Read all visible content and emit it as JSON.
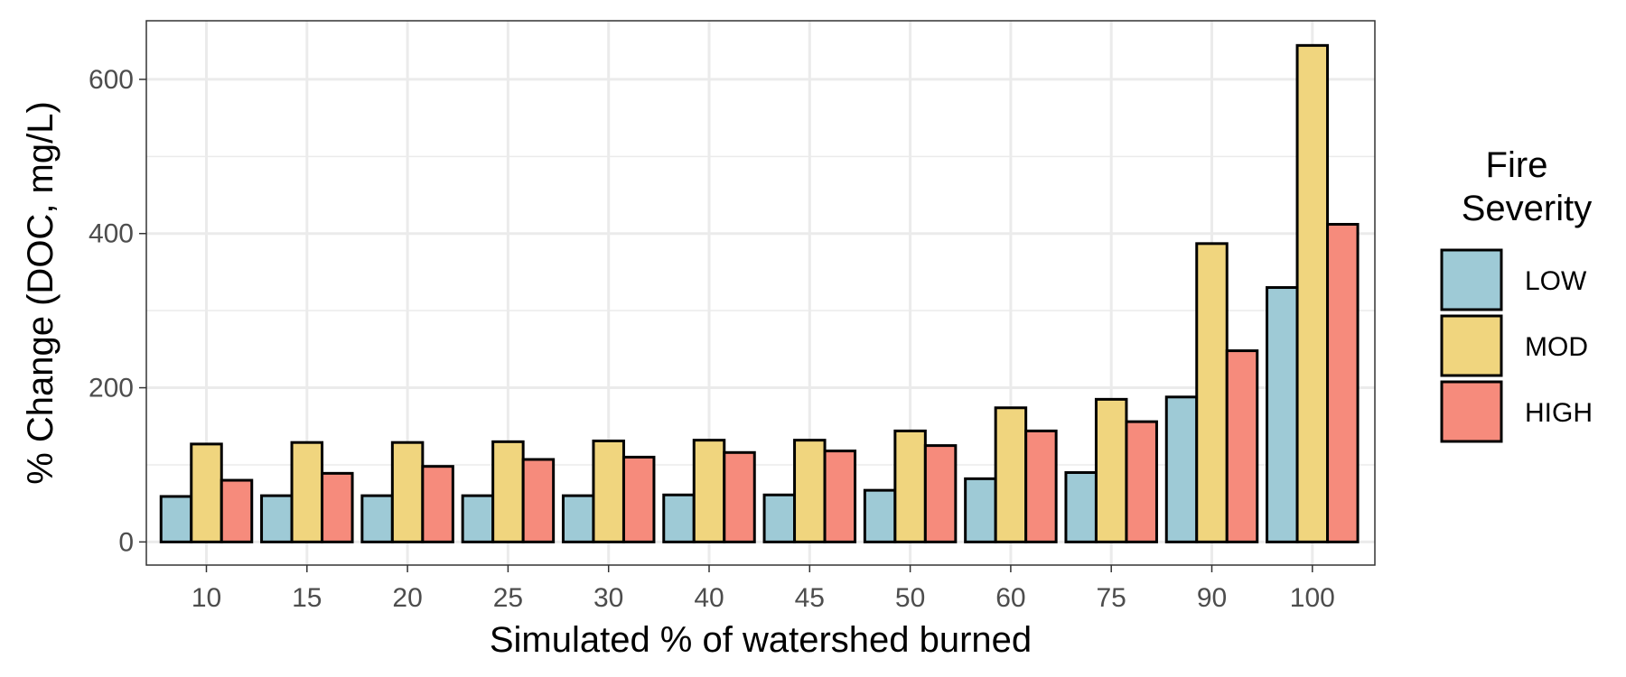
{
  "chart_data": {
    "type": "bar",
    "xlabel": "Simulated % of watershed burned",
    "ylabel": "% Change (DOC, mg/L)",
    "categories": [
      "10",
      "15",
      "20",
      "25",
      "30",
      "40",
      "45",
      "50",
      "60",
      "75",
      "90",
      "100"
    ],
    "series": [
      {
        "name": "LOW",
        "color": "#9ECAD6",
        "values": [
          59,
          60,
          60,
          60,
          60,
          61,
          61,
          67,
          82,
          90,
          188,
          330
        ]
      },
      {
        "name": "MOD",
        "color": "#F0D57E",
        "values": [
          127,
          129,
          129,
          130,
          131,
          132,
          132,
          144,
          174,
          185,
          387,
          644
        ]
      },
      {
        "name": "HIGH",
        "color": "#F68B7C",
        "values": [
          80,
          89,
          98,
          107,
          110,
          116,
          118,
          125,
          144,
          156,
          248,
          412
        ]
      }
    ],
    "ylim": [
      -30,
      676
    ],
    "yticks": [
      0,
      200,
      400,
      600
    ],
    "grid": true,
    "legend": {
      "title_line1": "Fire",
      "title_line2": "Severity",
      "position": "right"
    }
  }
}
